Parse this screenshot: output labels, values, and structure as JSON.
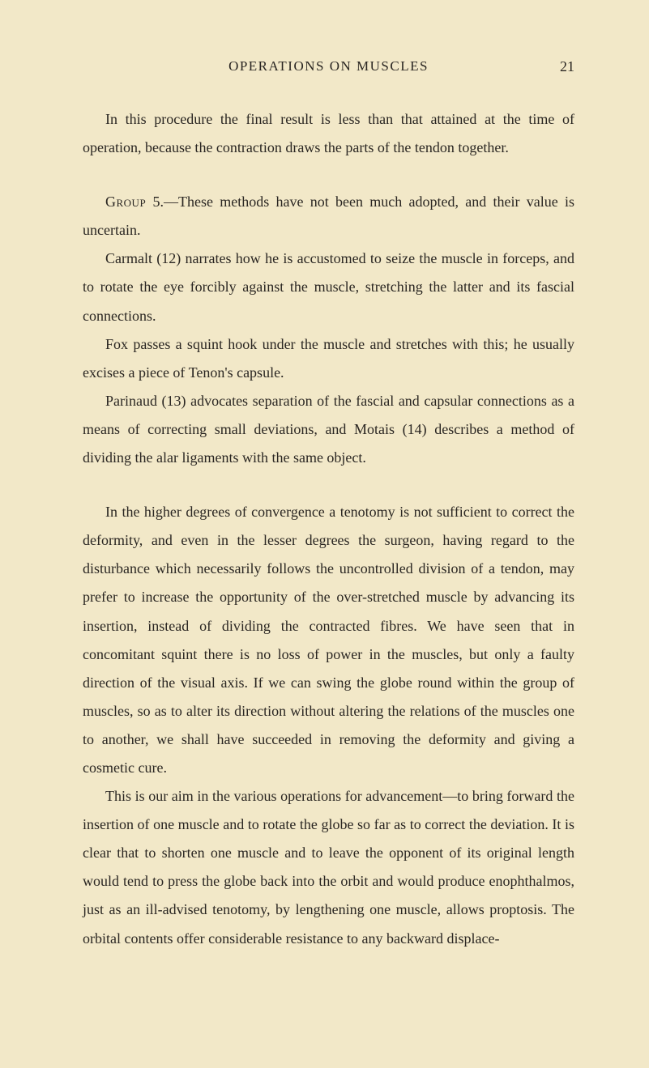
{
  "page": {
    "running_title": "OPERATIONS ON MUSCLES",
    "number": "21",
    "background_color": "#f2e8c8",
    "text_color": "#2a2622",
    "body_fontsize": 18,
    "line_height": 1.95
  },
  "paragraphs": [
    {
      "text": "In this procedure the final result is less than that attained at the time of operation, because the contraction draws the parts of the tendon together.",
      "indent": true,
      "gap_before": false
    },
    {
      "text": "Group 5.—These methods have not been much adopted, and their value is uncertain.",
      "indent": true,
      "gap_before": true,
      "smallcaps_prefix": "Group"
    },
    {
      "text": "Carmalt (12) narrates how he is accustomed to seize the muscle in forceps, and to rotate the eye forcibly against the muscle, stretching the latter and its fascial connections.",
      "indent": true,
      "gap_before": false
    },
    {
      "text": "Fox passes a squint hook under the muscle and stretches with this; he usually excises a piece of Tenon's capsule.",
      "indent": true,
      "gap_before": false
    },
    {
      "text": "Parinaud (13) advocates separation of the fascial and capsular connections as a means of correcting small deviations, and Motais (14) describes a method of dividing the alar ligaments with the same object.",
      "indent": true,
      "gap_before": false
    },
    {
      "text": "In the higher degrees of convergence a tenotomy is not sufficient to correct the deformity, and even in the lesser degrees the surgeon, having regard to the disturbance which necessarily follows the uncontrolled division of a tendon, may prefer to increase the opportunity of the over-stretched muscle by advancing its insertion, instead of dividing the contracted fibres. We have seen that in concomitant squint there is no loss of power in the muscles, but only a faulty direction of the visual axis. If we can swing the globe round within the group of muscles, so as to alter its direction without altering the relations of the muscles one to another, we shall have succeeded in removing the deformity and giving a cosmetic cure.",
      "indent": true,
      "gap_before": true
    },
    {
      "text": "This is our aim in the various operations for advancement—to bring forward the insertion of one muscle and to rotate the globe so far as to correct the deviation. It is clear that to shorten one muscle and to leave the opponent of its original length would tend to press the globe back into the orbit and would produce enophthalmos, just as an ill-advised tenotomy, by lengthening one muscle, allows proptosis. The orbital contents offer considerable resistance to any backward displace-",
      "indent": true,
      "gap_before": false
    }
  ]
}
